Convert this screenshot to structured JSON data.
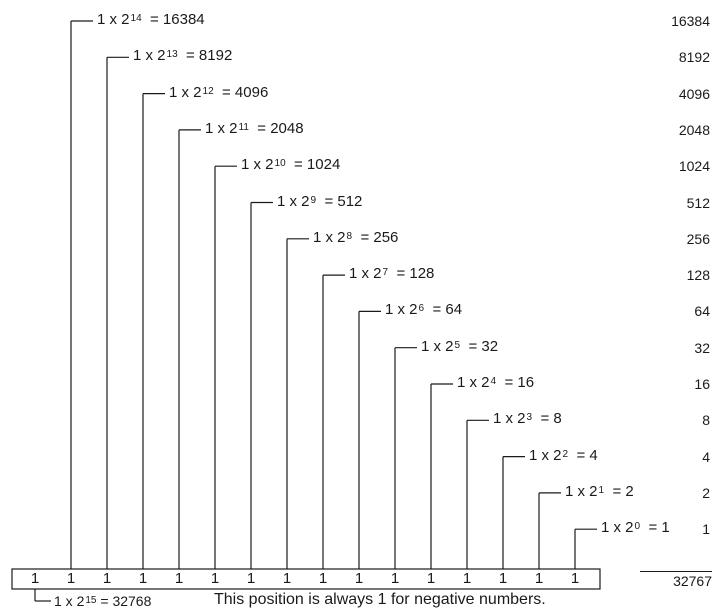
{
  "terms": [
    {
      "coef": "1 x 2",
      "exp": "14",
      "eq": "= 16384",
      "value": "16384"
    },
    {
      "coef": "1 x 2",
      "exp": "13",
      "eq": "= 8192",
      "value": "8192"
    },
    {
      "coef": "1 x 2",
      "exp": "12",
      "eq": "= 4096",
      "value": "4096"
    },
    {
      "coef": "1 x 2",
      "exp": "11",
      "eq": "= 2048",
      "value": "2048"
    },
    {
      "coef": "1 x 2",
      "exp": "10",
      "eq": "= 1024",
      "value": "1024"
    },
    {
      "coef": "1 x 2",
      "exp": "9",
      "eq": "=  512",
      "value": "512"
    },
    {
      "coef": "1 x 2",
      "exp": "8",
      "eq": "= 256",
      "value": "256"
    },
    {
      "coef": "1 x 2",
      "exp": "7",
      "eq": "= 128",
      "value": "128"
    },
    {
      "coef": "1 x 2",
      "exp": "6",
      "eq": "= 64",
      "value": "64"
    },
    {
      "coef": "1 x 2",
      "exp": "5",
      "eq": "= 32",
      "value": "32"
    },
    {
      "coef": "1 x 2",
      "exp": "4",
      "eq": "= 16",
      "value": "16"
    },
    {
      "coef": "1 x 2",
      "exp": "3",
      "eq": "= 8",
      "value": "8"
    },
    {
      "coef": "1 x 2",
      "exp": "2",
      "eq": "= 4",
      "value": "4"
    },
    {
      "coef": "1 x 2",
      "exp": "1",
      "eq": "= 2",
      "value": "2"
    },
    {
      "coef": "1 x 2",
      "exp": "0",
      "eq": "= 1",
      "value": "1"
    }
  ],
  "bits": [
    "1",
    "1",
    "1",
    "1",
    "1",
    "1",
    "1",
    "1",
    "1",
    "1",
    "1",
    "1",
    "1",
    "1",
    "1",
    "1"
  ],
  "total": "32767",
  "sign_bit": {
    "coef": "1 x 2",
    "exp": "15",
    "eq": "= 32768",
    "note": "This position is always 1 for negative numbers."
  }
}
